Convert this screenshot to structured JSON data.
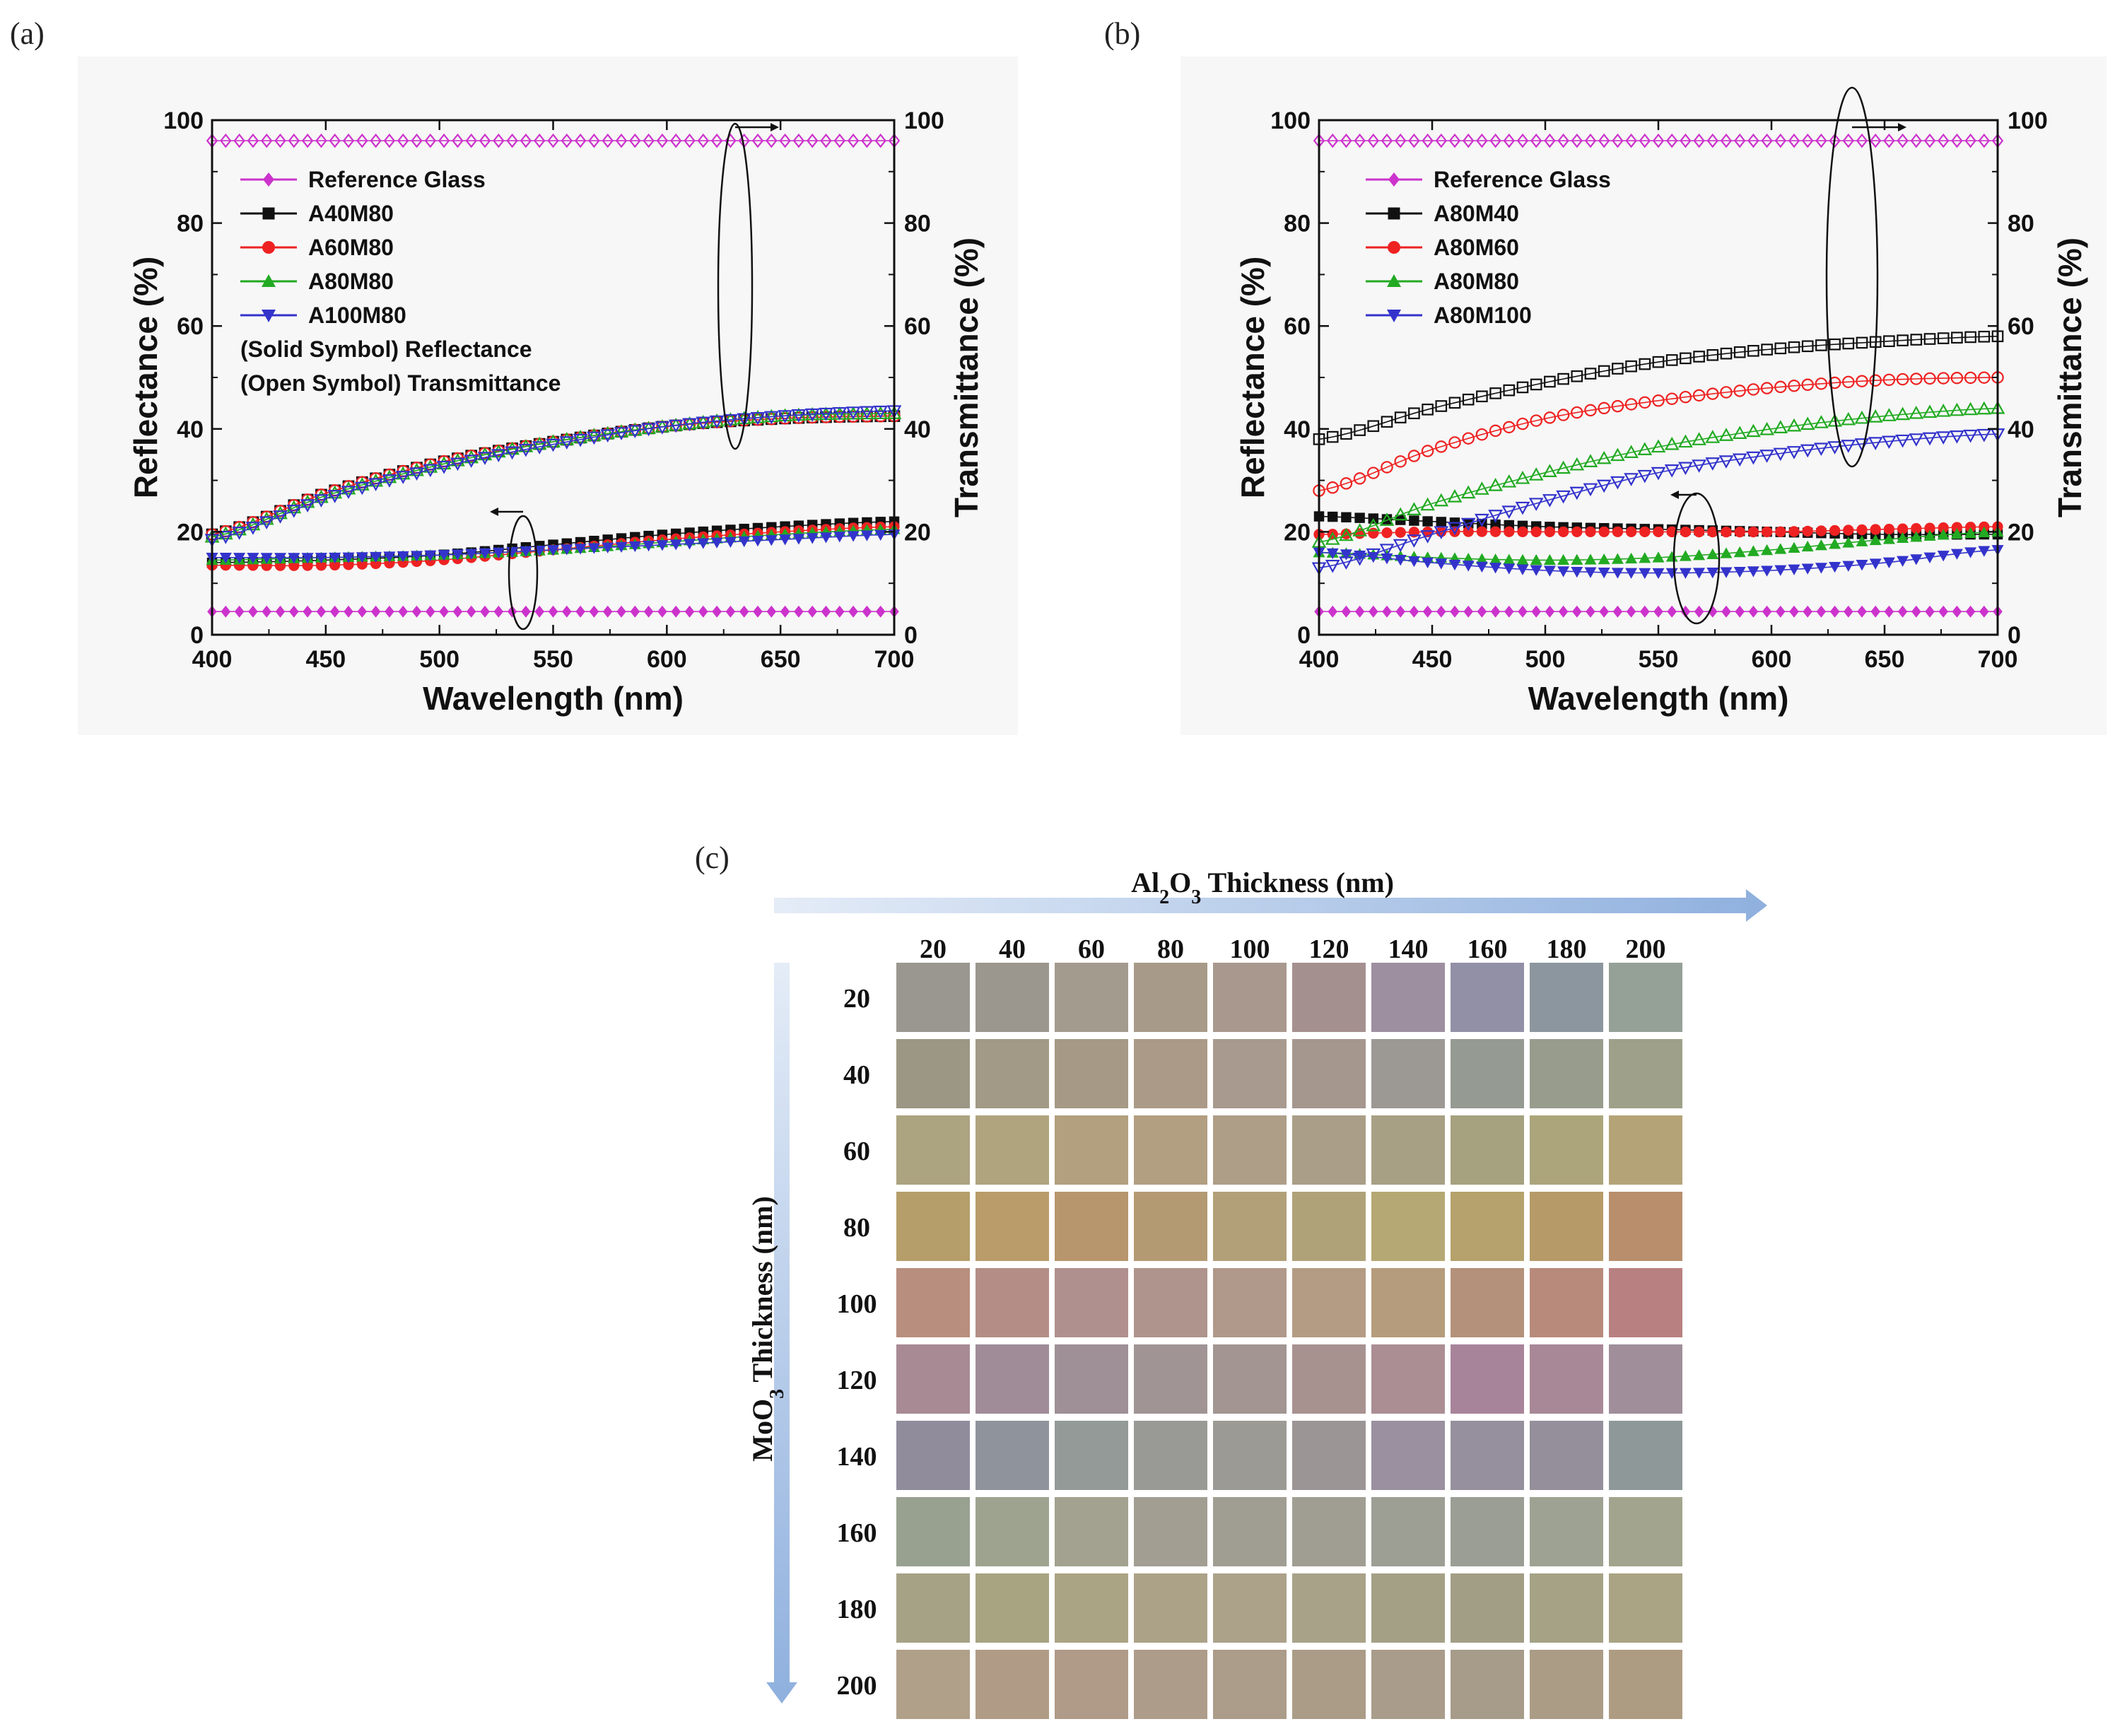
{
  "panels": {
    "a": "(a)",
    "b": "(b)",
    "c": "(c)"
  },
  "chart_data": [
    {
      "id": "a",
      "type": "line",
      "xlabel": "Wavelength (nm)",
      "ylabel": "Reflectance (%)",
      "y2label": "Transmittance (%)",
      "xlim": [
        400,
        700
      ],
      "ylim": [
        0,
        100
      ],
      "y2lim": [
        0,
        100
      ],
      "xticks": [
        400,
        450,
        500,
        550,
        600,
        650,
        700
      ],
      "yticks": [
        0,
        20,
        40,
        60,
        80,
        100
      ],
      "legend_notes": [
        "(Solid Symbol) Reflectance",
        "(Open Symbol) Transmittance"
      ],
      "series": [
        {
          "name": "Reference Glass",
          "color": "#cc33cc",
          "marker": "diamond",
          "reflectance": [
            [
              400,
              4.5
            ],
            [
              700,
              4.5
            ]
          ],
          "transmittance": [
            [
              400,
              96
            ],
            [
              700,
              96
            ]
          ]
        },
        {
          "name": "A40M80",
          "color": "#111111",
          "marker": "square",
          "reflectance": [
            [
              400,
              14
            ],
            [
              450,
              14.5
            ],
            [
              500,
              15.5
            ],
            [
              550,
              17.5
            ],
            [
              600,
              19.5
            ],
            [
              650,
              21
            ],
            [
              700,
              22
            ]
          ],
          "transmittance": [
            [
              400,
              19.5
            ],
            [
              450,
              27.5
            ],
            [
              500,
              33.5
            ],
            [
              550,
              37.5
            ],
            [
              600,
              40.5
            ],
            [
              650,
              42
            ],
            [
              700,
              42.5
            ]
          ]
        },
        {
          "name": "A60M80",
          "color": "#ee2222",
          "marker": "circle",
          "reflectance": [
            [
              400,
              13.5
            ],
            [
              450,
              13.5
            ],
            [
              500,
              14.5
            ],
            [
              550,
              16.5
            ],
            [
              600,
              18.5
            ],
            [
              650,
              20
            ],
            [
              700,
              21
            ]
          ],
          "transmittance": [
            [
              400,
              19.5
            ],
            [
              450,
              27.5
            ],
            [
              500,
              33.5
            ],
            [
              550,
              37.5
            ],
            [
              600,
              40.5
            ],
            [
              650,
              42
            ],
            [
              700,
              42.5
            ]
          ]
        },
        {
          "name": "A80M80",
          "color": "#22aa22",
          "marker": "triangle-up",
          "reflectance": [
            [
              400,
              14.5
            ],
            [
              450,
              15
            ],
            [
              500,
              15.5
            ],
            [
              550,
              16.5
            ],
            [
              600,
              18
            ],
            [
              650,
              19.5
            ],
            [
              700,
              20.5
            ]
          ],
          "transmittance": [
            [
              400,
              19
            ],
            [
              450,
              27
            ],
            [
              500,
              33
            ],
            [
              550,
              37.5
            ],
            [
              600,
              40.5
            ],
            [
              650,
              42.5
            ],
            [
              700,
              43
            ]
          ]
        },
        {
          "name": "A100M80",
          "color": "#3333cc",
          "marker": "triangle-down",
          "reflectance": [
            [
              400,
              15
            ],
            [
              450,
              15
            ],
            [
              500,
              15.5
            ],
            [
              550,
              16.5
            ],
            [
              600,
              17.5
            ],
            [
              650,
              18.5
            ],
            [
              700,
              19.5
            ]
          ],
          "transmittance": [
            [
              400,
              18.5
            ],
            [
              450,
              26.5
            ],
            [
              500,
              32.5
            ],
            [
              550,
              37
            ],
            [
              600,
              40.5
            ],
            [
              650,
              42.5
            ],
            [
              700,
              43.5
            ]
          ]
        }
      ]
    },
    {
      "id": "b",
      "type": "line",
      "xlabel": "Wavelength (nm)",
      "ylabel": "Reflectance (%)",
      "y2label": "Transmittance (%)",
      "xlim": [
        400,
        700
      ],
      "ylim": [
        0,
        100
      ],
      "y2lim": [
        0,
        100
      ],
      "xticks": [
        400,
        450,
        500,
        550,
        600,
        650,
        700
      ],
      "yticks": [
        0,
        20,
        40,
        60,
        80,
        100
      ],
      "legend_notes": [],
      "series": [
        {
          "name": "Reference Glass",
          "color": "#cc33cc",
          "marker": "diamond",
          "reflectance": [
            [
              400,
              4.5
            ],
            [
              700,
              4.5
            ]
          ],
          "transmittance": [
            [
              400,
              96
            ],
            [
              700,
              96
            ]
          ]
        },
        {
          "name": "A80M40",
          "color": "#111111",
          "marker": "square",
          "reflectance": [
            [
              400,
              23
            ],
            [
              450,
              22
            ],
            [
              500,
              21
            ],
            [
              550,
              20.5
            ],
            [
              600,
              20
            ],
            [
              650,
              19.5
            ],
            [
              700,
              19.5
            ]
          ],
          "transmittance": [
            [
              400,
              38
            ],
            [
              450,
              44
            ],
            [
              500,
              49
            ],
            [
              550,
              53
            ],
            [
              600,
              55.5
            ],
            [
              650,
              57
            ],
            [
              700,
              58
            ]
          ]
        },
        {
          "name": "A80M60",
          "color": "#ee2222",
          "marker": "circle",
          "reflectance": [
            [
              400,
              19.5
            ],
            [
              450,
              20
            ],
            [
              500,
              20
            ],
            [
              550,
              20
            ],
            [
              600,
              20
            ],
            [
              650,
              20.5
            ],
            [
              700,
              21
            ]
          ],
          "transmittance": [
            [
              400,
              28
            ],
            [
              450,
              36
            ],
            [
              500,
              42
            ],
            [
              550,
              45.5
            ],
            [
              600,
              48
            ],
            [
              650,
              49.5
            ],
            [
              700,
              50
            ]
          ]
        },
        {
          "name": "A80M80",
          "color": "#22aa22",
          "marker": "triangle-up",
          "reflectance": [
            [
              400,
              16
            ],
            [
              450,
              15
            ],
            [
              500,
              14.5
            ],
            [
              550,
              15
            ],
            [
              600,
              16.5
            ],
            [
              650,
              18.5
            ],
            [
              700,
              20
            ]
          ],
          "transmittance": [
            [
              400,
              18
            ],
            [
              450,
              25.5
            ],
            [
              500,
              31.5
            ],
            [
              550,
              36.5
            ],
            [
              600,
              40
            ],
            [
              650,
              42.5
            ],
            [
              700,
              44
            ]
          ]
        },
        {
          "name": "A80M100",
          "color": "#3333cc",
          "marker": "triangle-down",
          "reflectance": [
            [
              400,
              16
            ],
            [
              450,
              14
            ],
            [
              500,
              12.5
            ],
            [
              550,
              12
            ],
            [
              600,
              12.5
            ],
            [
              650,
              14
            ],
            [
              700,
              16.5
            ]
          ],
          "transmittance": [
            [
              400,
              13
            ],
            [
              450,
              19.5
            ],
            [
              500,
              26
            ],
            [
              550,
              31.5
            ],
            [
              600,
              35
            ],
            [
              650,
              37.5
            ],
            [
              700,
              39
            ]
          ]
        }
      ]
    },
    {
      "id": "c",
      "type": "heatmap",
      "xlabel_parts": [
        "Al",
        "2",
        "O",
        "3",
        " Thickness (nm)"
      ],
      "ylabel_parts": [
        "MoO",
        "3",
        " Thickness (nm)"
      ],
      "x": [
        20,
        40,
        60,
        80,
        100,
        120,
        140,
        160,
        180,
        200
      ],
      "y": [
        20,
        40,
        60,
        80,
        100,
        120,
        140,
        160,
        180,
        200
      ],
      "colors": [
        [
          "#9a9790",
          "#9c978e",
          "#a39b8e",
          "#a89a88",
          "#a8988e",
          "#a59090",
          "#9d8fa0",
          "#9290a6",
          "#8c969e",
          "#95a096"
        ],
        [
          "#9b9784",
          "#a29a86",
          "#a69a86",
          "#ab9a88",
          "#a89a8e",
          "#a5968e",
          "#9c9894",
          "#959a92",
          "#989c8c",
          "#9ea08a"
        ],
        [
          "#aca380",
          "#b0a47e",
          "#b2a07e",
          "#b29e80",
          "#ae9e88",
          "#aa9e88",
          "#a8a084",
          "#a6a280",
          "#aca57c",
          "#b5a378"
        ],
        [
          "#b59e6a",
          "#b99c6a",
          "#b7966e",
          "#b49a72",
          "#b2a078",
          "#b0a278",
          "#b6a874",
          "#b5a26c",
          "#b69a68",
          "#b88e6c"
        ],
        [
          "#b88e7e",
          "#b48e86",
          "#b0908e",
          "#ae948c",
          "#b0988a",
          "#b49c84",
          "#b59c7c",
          "#b4917a",
          "#b88a7c",
          "#b88080"
        ],
        [
          "#a88a94",
          "#a08c98",
          "#9e9096",
          "#a09494",
          "#a29592",
          "#a89290",
          "#ab8e94",
          "#a8849a",
          "#a88896",
          "#a08e9a"
        ],
        [
          "#908c9c",
          "#8f949c",
          "#939a98",
          "#999a96",
          "#9c9a94",
          "#9c9596",
          "#9a90a0",
          "#96909e",
          "#958f9c",
          "#8e9898"
        ],
        [
          "#98a090",
          "#9ea390",
          "#a3a290",
          "#a29e92",
          "#a09e92",
          "#a09e92",
          "#9d9e94",
          "#9a9e94",
          "#9ea292",
          "#a3a48e"
        ],
        [
          "#a6a286",
          "#a8a482",
          "#aba484",
          "#aca288",
          "#aca28a",
          "#a8a288",
          "#a4a086",
          "#a29e86",
          "#a5a286",
          "#aaa484"
        ],
        [
          "#b0a08a",
          "#b09c86",
          "#b09a88",
          "#ae9c8a",
          "#ac9c8a",
          "#ab9c88",
          "#a99c8a",
          "#a79c8a",
          "#ab9c86",
          "#ae9c82"
        ]
      ]
    }
  ]
}
